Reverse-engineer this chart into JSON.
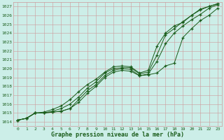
{
  "xlabel": "Graphe pression niveau de la mer (hPa)",
  "ylim": [
    1013.5,
    1027.5
  ],
  "xlim": [
    -0.5,
    23.5
  ],
  "yticks": [
    1014,
    1015,
    1016,
    1017,
    1018,
    1019,
    1020,
    1021,
    1022,
    1023,
    1024,
    1025,
    1026,
    1027
  ],
  "xticks": [
    0,
    1,
    2,
    3,
    4,
    5,
    6,
    7,
    8,
    9,
    10,
    11,
    12,
    13,
    14,
    15,
    16,
    17,
    18,
    19,
    20,
    21,
    22,
    23
  ],
  "bg_color": "#cceee8",
  "grid_color": "#cc9999",
  "line_color": "#1a5c1a",
  "line1": [
    1014.2,
    1014.4,
    1015.0,
    1015.0,
    1015.1,
    1015.2,
    1015.5,
    1016.2,
    1017.2,
    1018.0,
    1019.0,
    1019.6,
    1019.8,
    1019.7,
    1019.2,
    1019.3,
    1019.5,
    1020.3,
    1020.6,
    1023.5,
    1024.5,
    1025.4,
    1026.0,
    1026.8
  ],
  "line2": [
    1014.2,
    1014.4,
    1015.0,
    1015.0,
    1015.1,
    1015.2,
    1015.5,
    1016.5,
    1017.5,
    1018.2,
    1019.2,
    1019.8,
    1020.0,
    1019.9,
    1019.2,
    1019.4,
    1020.8,
    1022.8,
    1024.0,
    1024.8,
    1025.5,
    1026.1,
    1026.8,
    1027.2
  ],
  "line3": [
    1014.2,
    1014.4,
    1015.0,
    1015.0,
    1015.2,
    1015.5,
    1016.0,
    1016.8,
    1017.8,
    1018.5,
    1019.5,
    1020.0,
    1020.1,
    1020.1,
    1019.4,
    1019.6,
    1021.5,
    1023.8,
    1024.5,
    1025.3,
    1026.0,
    1026.7,
    1027.0,
    1027.3
  ],
  "line4": [
    1014.2,
    1014.4,
    1015.0,
    1015.1,
    1015.4,
    1015.8,
    1016.5,
    1017.4,
    1018.2,
    1018.8,
    1019.6,
    1020.2,
    1020.3,
    1020.2,
    1019.5,
    1019.8,
    1022.5,
    1024.0,
    1024.8,
    1025.2,
    1026.0,
    1026.6,
    1027.0,
    1027.3
  ]
}
